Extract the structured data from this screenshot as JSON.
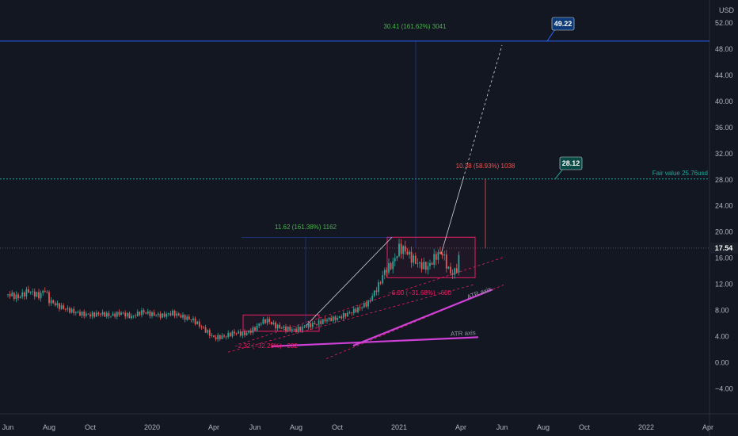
{
  "chart_data": {
    "type": "candlestick",
    "currency_label": "USD",
    "y_ticks": [
      "52.00",
      "48.00",
      "44.00",
      "40.00",
      "36.00",
      "32.00",
      "28.00",
      "24.00",
      "20.00",
      "16.00",
      "12.00",
      "8.00",
      "4.00",
      "0.00",
      "−4.00"
    ],
    "y_tick_values": [
      52,
      48,
      44,
      40,
      36,
      32,
      28,
      24,
      20,
      16,
      12,
      8,
      4,
      0,
      -4
    ],
    "ylim": [
      -8,
      56
    ],
    "x_ticks": [
      "Jun",
      "Aug",
      "Oct",
      "2020",
      "Apr",
      "Jun",
      "Aug",
      "Oct",
      "2021",
      "Apr",
      "Jun",
      "Aug",
      "Oct",
      "2022",
      "Apr"
    ],
    "x_tick_months": [
      0,
      2,
      4,
      7,
      10,
      12,
      14,
      16,
      19,
      22,
      24,
      26,
      28,
      31,
      34
    ],
    "grid": false,
    "price_labels": [
      {
        "text": "49.22",
        "value": 49.22,
        "color": "#0d3b78",
        "line_color": "#2962ff"
      },
      {
        "text": "28.12",
        "value": 28.12,
        "color": "#0b4b45",
        "line_color": "#26a69a"
      },
      {
        "text": "17.54",
        "value": 17.54,
        "color": "#1b1f2a",
        "line_color": "#787b86"
      }
    ],
    "annotations": [
      {
        "id": "target1",
        "text": "30.41 (161.62%) 3041",
        "color": "#4caf50"
      },
      {
        "id": "measure1",
        "text": "11.62 (161.38%) 1162",
        "color": "#4caf50"
      },
      {
        "id": "measure2",
        "text": "10.38 (58.93%) 1038",
        "color": "#ef5350"
      },
      {
        "id": "fair",
        "text": "Fair value 25.76usd",
        "color": "#26a69a"
      },
      {
        "id": "drop1",
        "text": "−6.00 (−31.68%) −600",
        "color": "#e91e63"
      },
      {
        "id": "drop2",
        "text": "−2.32 (−32.28%) −232",
        "color": "#e91e63"
      },
      {
        "id": "atr1",
        "text": "ATR axis",
        "color": "#9598a1"
      },
      {
        "id": "atr2",
        "text": "ATR axis",
        "color": "#9598a1"
      }
    ],
    "series": [
      {
        "points": [
          [
            0,
            10.5
          ],
          [
            0.5,
            10.0
          ],
          [
            1,
            11.0
          ],
          [
            1.5,
            10.2
          ],
          [
            1.8,
            11.2
          ],
          [
            2,
            9.5
          ],
          [
            2.5,
            8.6
          ],
          [
            3,
            8.0
          ],
          [
            3.5,
            7.5
          ],
          [
            4,
            7.3
          ],
          [
            4.5,
            7.5
          ],
          [
            5,
            7.2
          ],
          [
            5.5,
            7.6
          ],
          [
            6,
            7.0
          ],
          [
            6.5,
            7.8
          ],
          [
            7,
            7.4
          ],
          [
            7.5,
            7.2
          ],
          [
            8,
            7.6
          ],
          [
            8.5,
            7.0
          ],
          [
            9,
            6.5
          ],
          [
            9.5,
            5.2
          ],
          [
            10,
            3.8
          ],
          [
            10.5,
            4.0
          ],
          [
            11,
            4.6
          ],
          [
            11.5,
            4.4
          ],
          [
            12,
            5.2
          ],
          [
            12.3,
            6.2
          ],
          [
            12.6,
            6.5
          ],
          [
            13,
            5.6
          ],
          [
            13.5,
            5.2
          ],
          [
            14,
            5.0
          ],
          [
            14.5,
            5.6
          ],
          [
            15,
            6.0
          ],
          [
            15.5,
            6.6
          ],
          [
            16,
            6.8
          ],
          [
            16.5,
            7.5
          ],
          [
            17,
            8.2
          ],
          [
            17.5,
            9.2
          ],
          [
            18,
            11.8
          ],
          [
            18.3,
            14.0
          ],
          [
            18.7,
            15.2
          ],
          [
            19,
            17.5
          ],
          [
            19.3,
            17.2
          ],
          [
            19.6,
            16.0
          ],
          [
            20,
            15.0
          ],
          [
            20.4,
            14.6
          ],
          [
            20.8,
            16.4
          ],
          [
            21.1,
            16.8
          ],
          [
            21.4,
            14.2
          ],
          [
            21.6,
            13.6
          ],
          [
            21.8,
            14.4
          ],
          [
            22,
            17.3
          ]
        ]
      }
    ]
  }
}
